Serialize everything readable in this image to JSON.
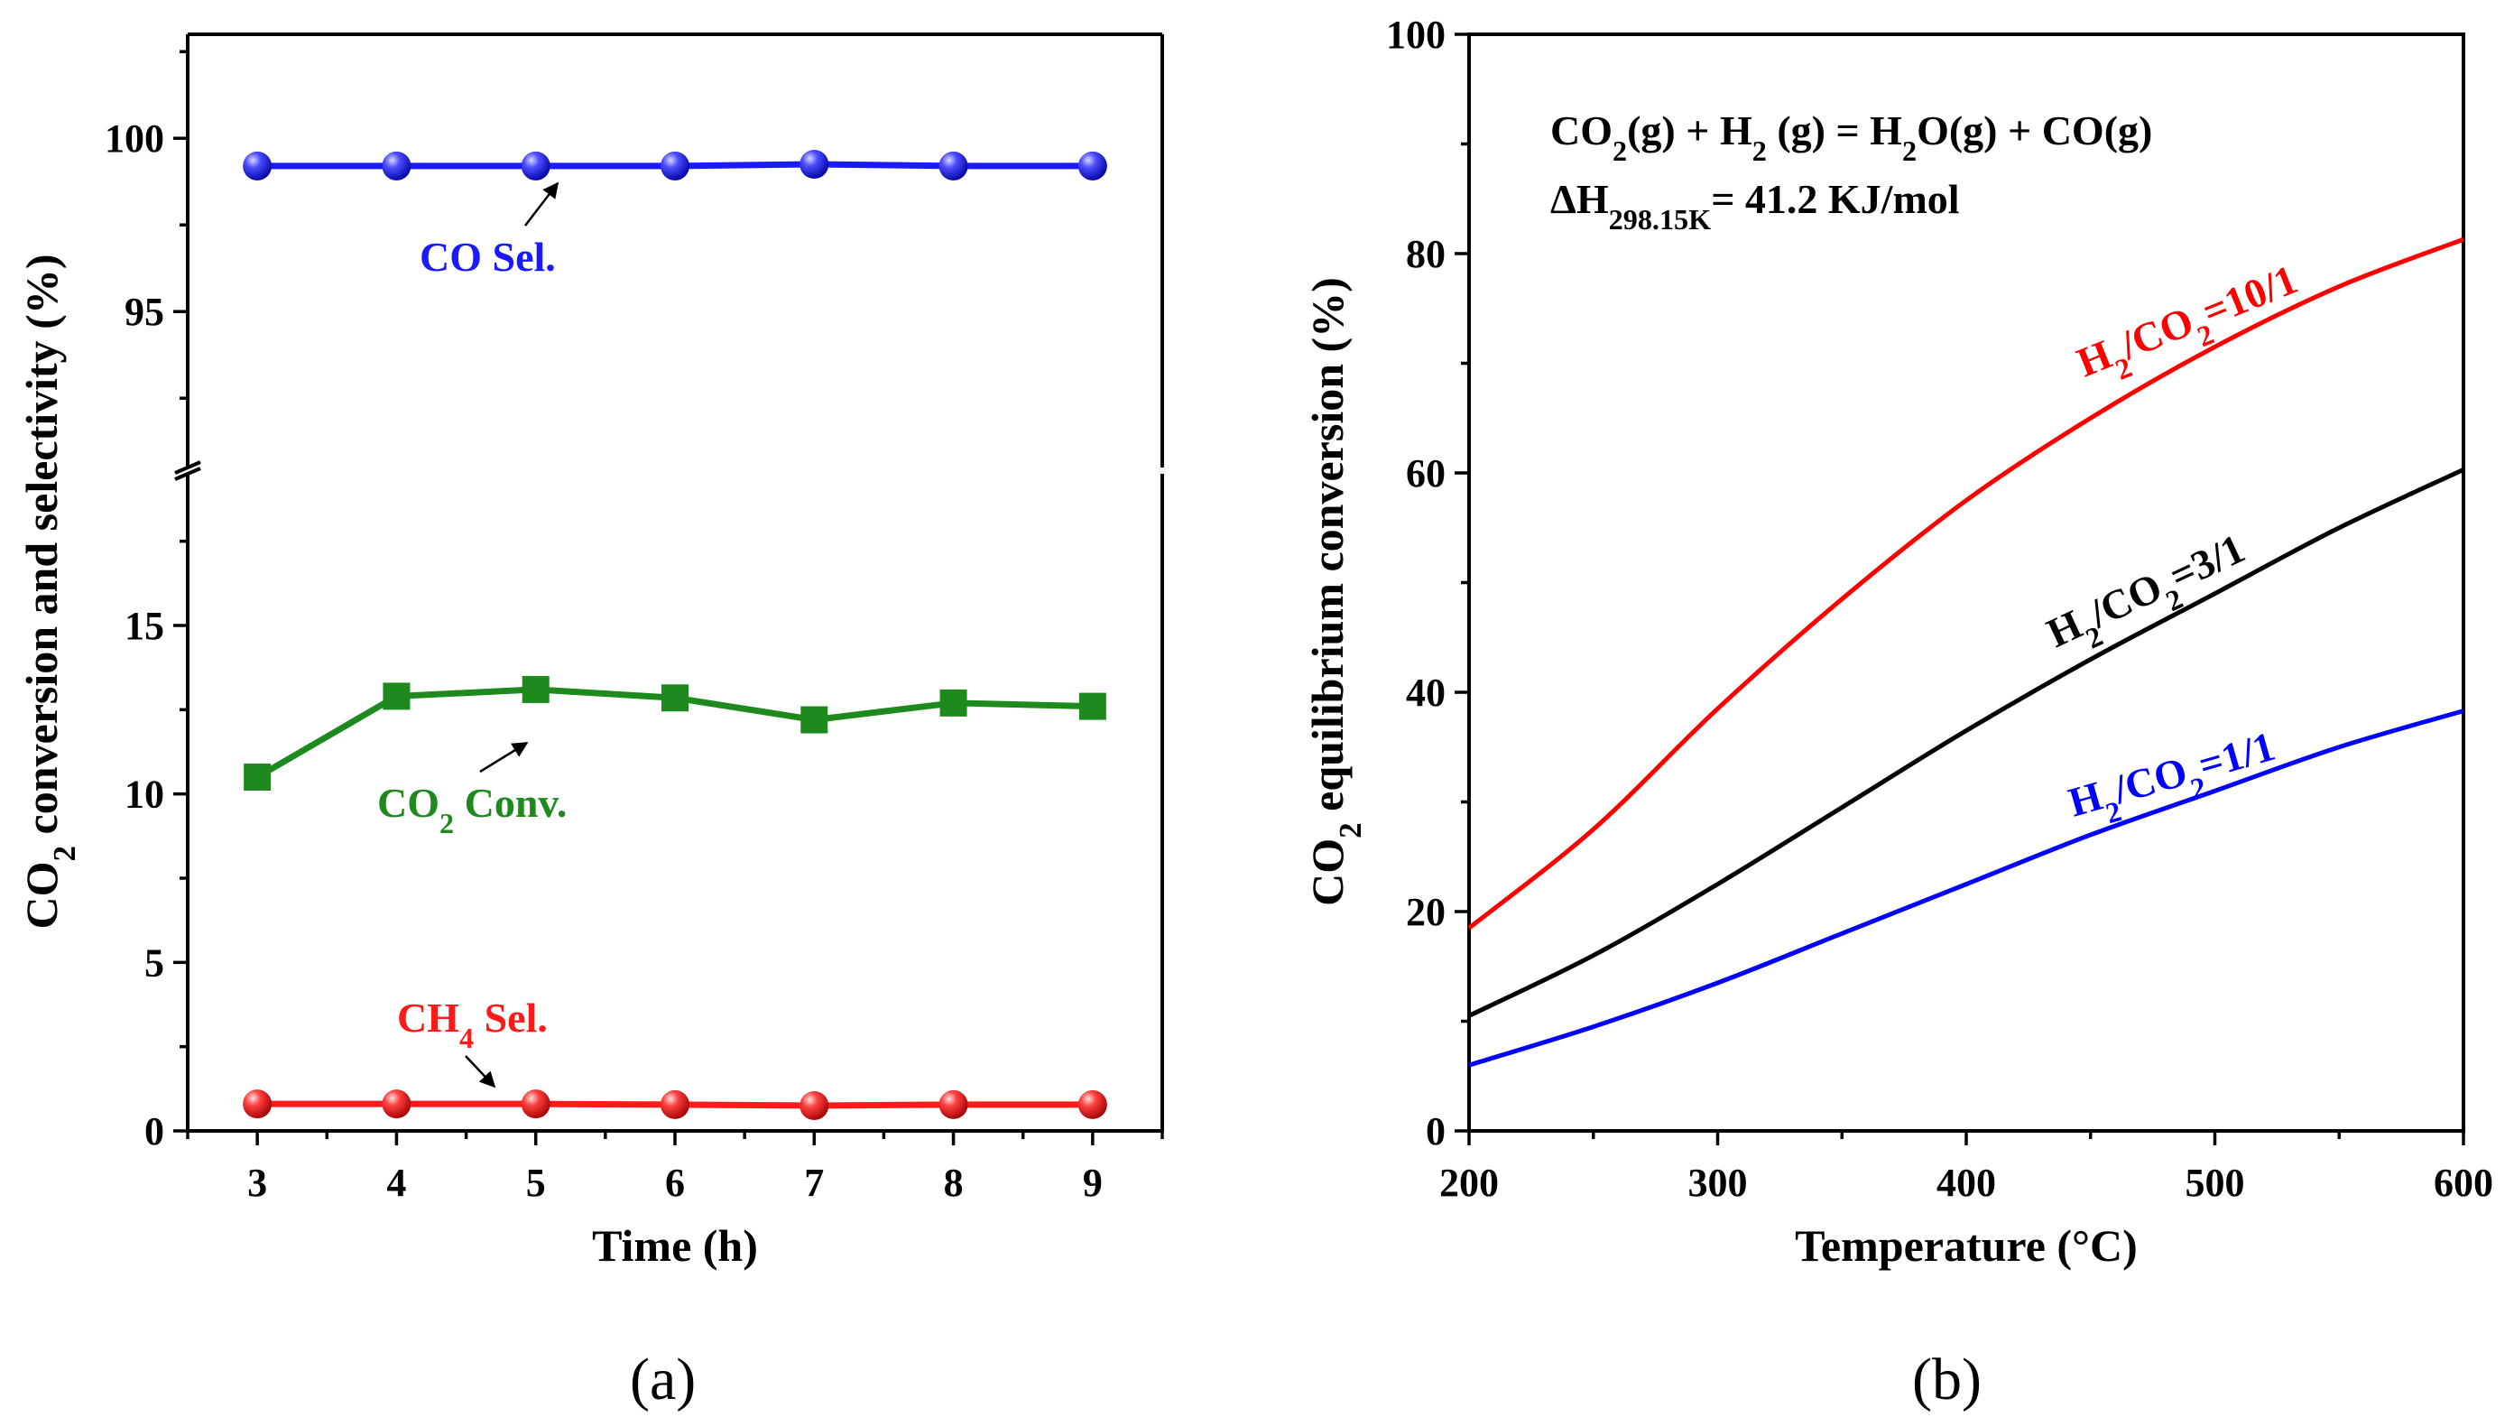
{
  "chart_data": [
    {
      "id": "a",
      "type": "line",
      "panel_label": "a",
      "xlabel": "Time (h)",
      "ylabel": {
        "prefix": "CO",
        "sub": "2",
        "suffix": " conversion and selectivity (%)"
      },
      "x": [
        3,
        4,
        5,
        6,
        7,
        8,
        9
      ],
      "xlim": [
        2.5,
        9.5
      ],
      "x_ticks": [
        3,
        4,
        5,
        6,
        7,
        8,
        9
      ],
      "y_axis_break": true,
      "ylim_lower": [
        0,
        19.5
      ],
      "ylim_upper": [
        90.5,
        103
      ],
      "y_ticks_lower": [
        0,
        5,
        10,
        15
      ],
      "y_ticks_upper": [
        95,
        100
      ],
      "series": [
        {
          "name": "CO Sel.",
          "color": "#1a1aff",
          "marker": "sphere",
          "values": [
            99.2,
            99.2,
            99.2,
            99.2,
            99.25,
            99.2,
            99.2
          ]
        },
        {
          "name": "CO2 Conv.",
          "color": "#1e8a1e",
          "marker": "square",
          "values": [
            10.5,
            12.9,
            13.1,
            12.85,
            12.2,
            12.7,
            12.6
          ]
        },
        {
          "name": "CH4 Sel.",
          "color": "#ff1a1a",
          "marker": "sphere",
          "values": [
            0.8,
            0.8,
            0.8,
            0.78,
            0.75,
            0.78,
            0.78
          ]
        }
      ],
      "annotations": [
        {
          "series": "CO Sel.",
          "parts": [
            {
              "t": "CO Sel."
            }
          ],
          "color": "#1a1aff",
          "arrow_to": [
            5,
            99.2
          ]
        },
        {
          "series": "CO2 Conv.",
          "parts": [
            {
              "t": "CO"
            },
            {
              "t": "2",
              "sub": true
            },
            {
              "t": " Conv."
            }
          ],
          "color": "#1e8a1e",
          "arrow_to": [
            5,
            13.1
          ]
        },
        {
          "series": "CH4 Sel.",
          "parts": [
            {
              "t": "CH"
            },
            {
              "t": "4",
              "sub": true
            },
            {
              "t": " Sel."
            }
          ],
          "color": "#ff1a1a",
          "arrow_to": [
            5,
            0.8
          ]
        }
      ]
    },
    {
      "id": "b",
      "type": "line",
      "panel_label": "b",
      "xlabel": "Temperature (°C)",
      "ylabel": {
        "prefix": "CO",
        "sub": "2",
        "suffix": " equilibrium conversion (%)"
      },
      "xlim": [
        200,
        600
      ],
      "ylim": [
        0,
        100
      ],
      "x_ticks": [
        200,
        300,
        400,
        500,
        600
      ],
      "y_ticks": [
        0,
        20,
        40,
        60,
        80,
        100
      ],
      "x": [
        200,
        250,
        300,
        350,
        400,
        450,
        500,
        550,
        600
      ],
      "series": [
        {
          "name": "H2/CO2=10/1",
          "color": "#ff0000",
          "values": [
            18.5,
            27.5,
            38.5,
            48.5,
            57.5,
            65.0,
            71.5,
            77.0,
            81.3
          ]
        },
        {
          "name": "H2/CO2=3/1",
          "color": "#000000",
          "values": [
            10.5,
            16.0,
            22.5,
            29.5,
            36.5,
            43.0,
            49.0,
            55.0,
            60.3
          ]
        },
        {
          "name": "H2/CO2=1/1",
          "color": "#0000ff",
          "values": [
            6.0,
            9.5,
            13.5,
            18.0,
            22.5,
            27.0,
            31.0,
            35.0,
            38.3
          ]
        }
      ],
      "equation": {
        "line1": [
          {
            "t": "CO"
          },
          {
            "t": "2",
            "sub": true
          },
          {
            "t": "(g) + H"
          },
          {
            "t": "2",
            "sub": true
          },
          {
            "t": " (g) = H"
          },
          {
            "t": "2",
            "sub": true
          },
          {
            "t": "O(g) + CO(g)"
          }
        ],
        "line2": [
          {
            "t": "ΔH"
          },
          {
            "t": "298.15K",
            "sub": true
          },
          {
            "t": "= 41.2 KJ/mol"
          }
        ]
      },
      "curve_labels": [
        {
          "series": "H2/CO2=10/1",
          "parts": [
            {
              "t": "H"
            },
            {
              "t": "2",
              "sub": true
            },
            {
              "t": "/CO"
            },
            {
              "t": "2",
              "sub": true
            },
            {
              "t": "=10/1"
            }
          ],
          "color": "#ff0000"
        },
        {
          "series": "H2/CO2=3/1",
          "parts": [
            {
              "t": "H"
            },
            {
              "t": "2",
              "sub": true
            },
            {
              "t": "/CO"
            },
            {
              "t": "2",
              "sub": true
            },
            {
              "t": "=3/1"
            }
          ],
          "color": "#000000"
        },
        {
          "series": "H2/CO2=1/1",
          "parts": [
            {
              "t": "H"
            },
            {
              "t": "2",
              "sub": true
            },
            {
              "t": "/CO"
            },
            {
              "t": "2",
              "sub": true
            },
            {
              "t": "=1/1"
            }
          ],
          "color": "#0000ff"
        }
      ]
    }
  ]
}
